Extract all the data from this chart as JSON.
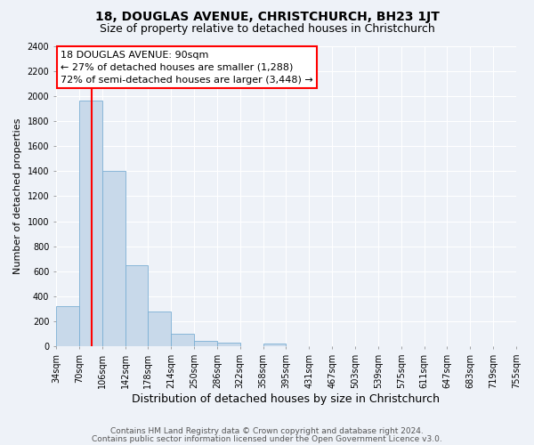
{
  "title": "18, DOUGLAS AVENUE, CHRISTCHURCH, BH23 1JT",
  "subtitle": "Size of property relative to detached houses in Christchurch",
  "xlabel": "Distribution of detached houses by size in Christchurch",
  "ylabel": "Number of detached properties",
  "footer_lines": [
    "Contains HM Land Registry data © Crown copyright and database right 2024.",
    "Contains public sector information licensed under the Open Government Licence v3.0."
  ],
  "bin_labels": [
    "34sqm",
    "70sqm",
    "106sqm",
    "142sqm",
    "178sqm",
    "214sqm",
    "250sqm",
    "286sqm",
    "322sqm",
    "358sqm",
    "395sqm",
    "431sqm",
    "467sqm",
    "503sqm",
    "539sqm",
    "575sqm",
    "611sqm",
    "647sqm",
    "683sqm",
    "719sqm",
    "755sqm"
  ],
  "bar_values": [
    320,
    1960,
    1400,
    650,
    280,
    105,
    45,
    30,
    0,
    20,
    0,
    0,
    0,
    0,
    0,
    0,
    0,
    0,
    0,
    0
  ],
  "bar_color": "#c8d9ea",
  "bar_edge_color": "#7bafd4",
  "annotation_line1": "18 DOUGLAS AVENUE: 90sqm",
  "annotation_line2": "← 27% of detached houses are smaller (1,288)",
  "annotation_line3": "72% of semi-detached houses are larger (3,448) →",
  "ylim": [
    0,
    2400
  ],
  "yticks": [
    0,
    200,
    400,
    600,
    800,
    1000,
    1200,
    1400,
    1600,
    1800,
    2000,
    2200,
    2400
  ],
  "background_color": "#eef2f8",
  "grid_color": "#ffffff",
  "title_fontsize": 10,
  "subtitle_fontsize": 9,
  "xlabel_fontsize": 9,
  "ylabel_fontsize": 8,
  "tick_fontsize": 7,
  "annotation_fontsize": 8,
  "footer_fontsize": 6.5
}
